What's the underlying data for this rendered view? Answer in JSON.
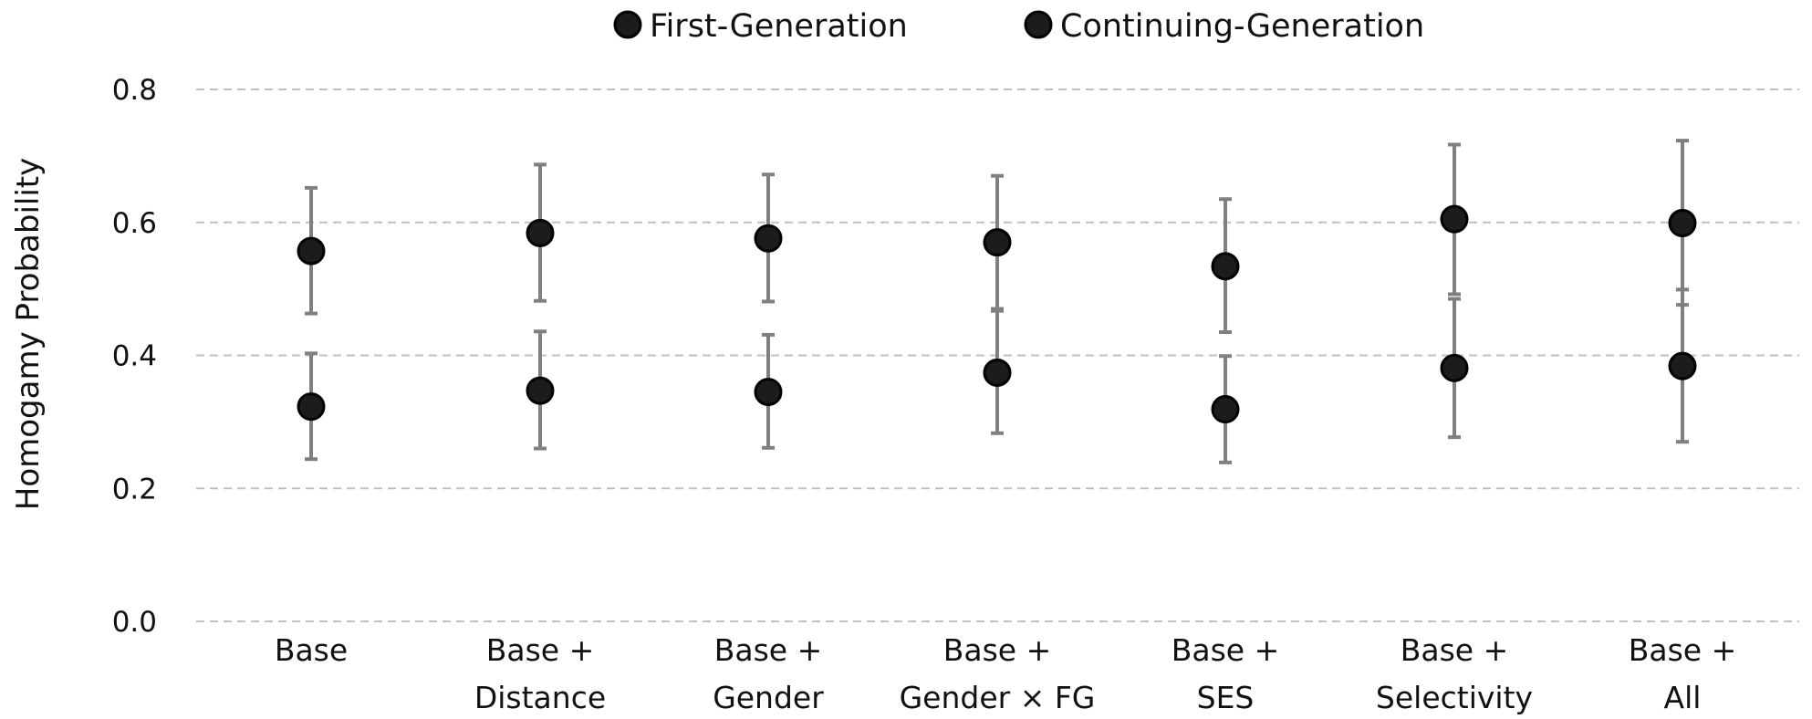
{
  "chart_data": {
    "type": "scatter",
    "ylabel": "Homogamy Probability",
    "ylim": [
      0,
      0.8
    ],
    "yticks": [
      "0.0",
      "0.2",
      "0.4",
      "0.6",
      "0.8"
    ],
    "grid": true,
    "legend_position": "top",
    "categories": [
      [
        "Base"
      ],
      [
        "Base +",
        "Distance"
      ],
      [
        "Base +",
        "Gender"
      ],
      [
        "Base +",
        "Gender × FG"
      ],
      [
        "Base +",
        "SES"
      ],
      [
        "Base +",
        "Selectivity"
      ],
      [
        "Base +",
        "All"
      ]
    ],
    "series": [
      {
        "name": "First-Generation",
        "values": [
          0.557,
          0.584,
          0.576,
          0.57,
          0.534,
          0.605,
          0.599
        ],
        "ci_lower": [
          0.463,
          0.482,
          0.481,
          0.467,
          0.435,
          0.492,
          0.476
        ],
        "ci_upper": [
          0.652,
          0.687,
          0.672,
          0.67,
          0.635,
          0.717,
          0.723
        ]
      },
      {
        "name": "Continuing-Generation",
        "values": [
          0.323,
          0.347,
          0.345,
          0.374,
          0.319,
          0.381,
          0.384
        ],
        "ci_lower": [
          0.244,
          0.26,
          0.261,
          0.283,
          0.239,
          0.277,
          0.27
        ],
        "ci_upper": [
          0.403,
          0.436,
          0.431,
          0.47,
          0.399,
          0.485,
          0.499
        ]
      }
    ],
    "colors": {
      "marker_fill": "#1c1c1c",
      "marker_stroke": "#000000",
      "errorbar": "#808080",
      "grid": "#c0c0c0"
    }
  }
}
